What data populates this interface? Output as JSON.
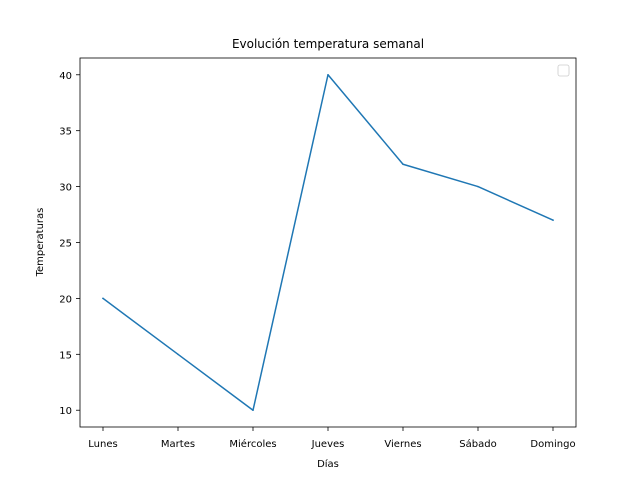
{
  "chart_data": {
    "type": "line",
    "title": "Evolución temperatura semanal",
    "xlabel": "Días",
    "ylabel": "Temperaturas",
    "categories": [
      "Lunes",
      "Martes",
      "Miércoles",
      "Jueves",
      "Viernes",
      "Sábado",
      "Domingo"
    ],
    "series": [
      {
        "values": [
          20,
          15,
          10,
          40,
          32,
          30,
          27
        ],
        "color": "#1f77b4"
      }
    ],
    "yticks": [
      10,
      15,
      20,
      25,
      30,
      35,
      40
    ],
    "ylim": [
      8.5,
      41.5
    ],
    "grid": false,
    "legend": "top-right, empty"
  }
}
